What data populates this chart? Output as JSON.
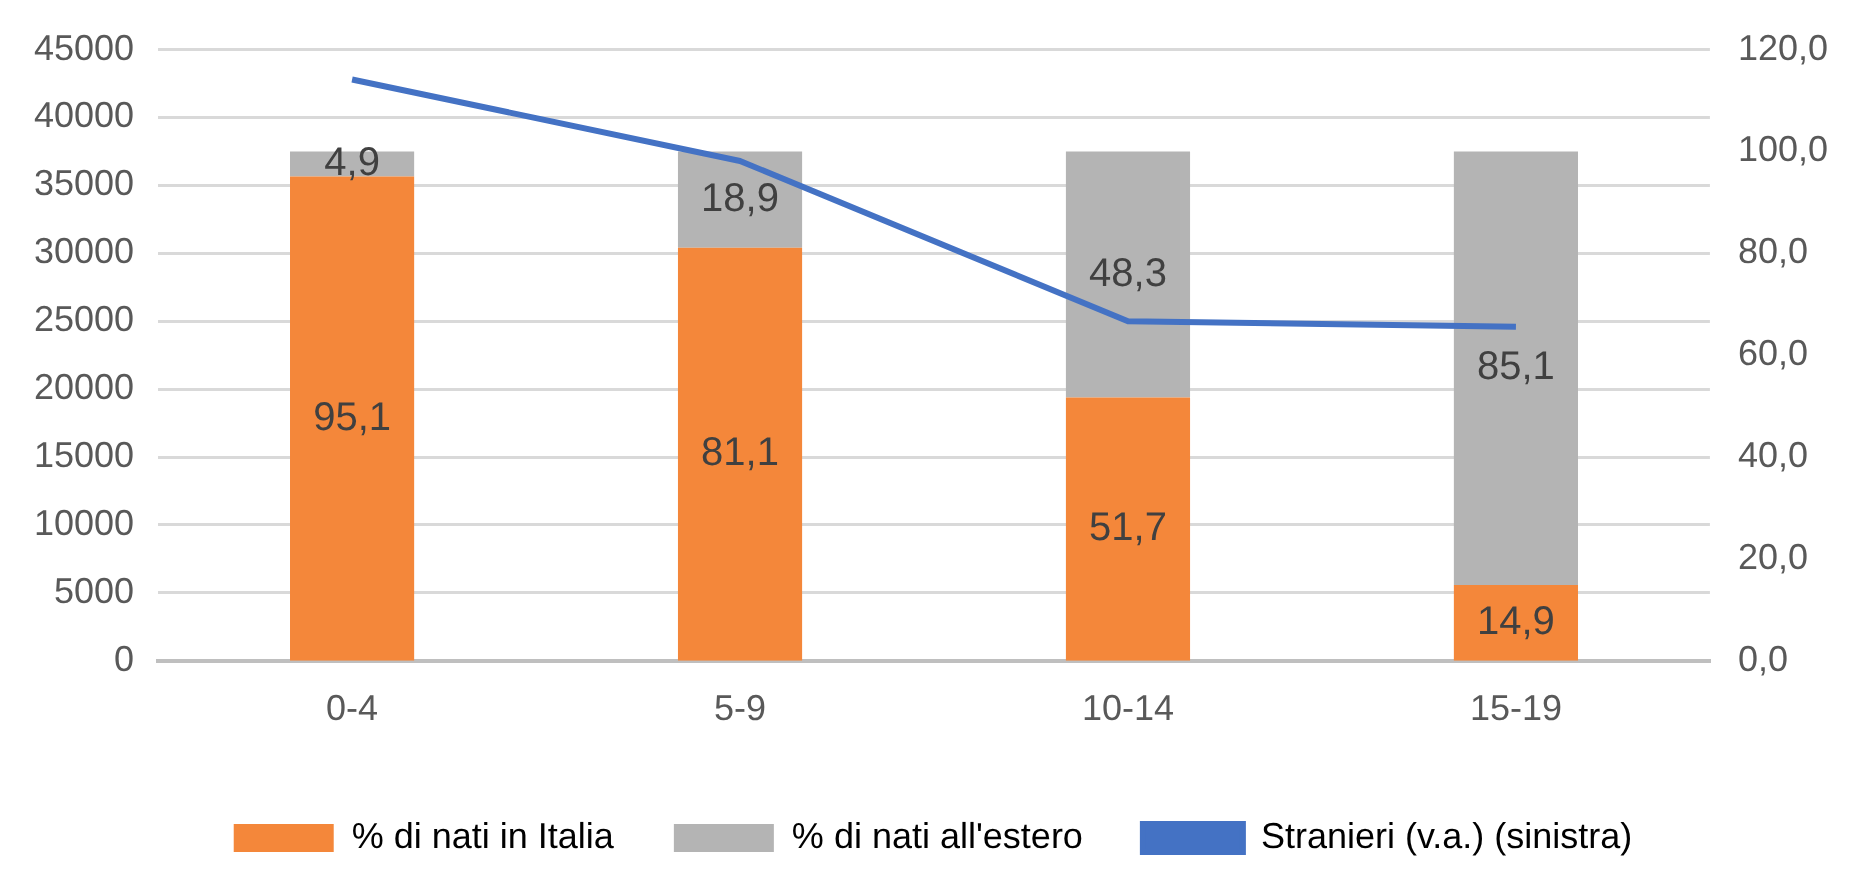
{
  "chart_data": {
    "type": "bar",
    "stacked": true,
    "categories": [
      "0-4",
      "5-9",
      "10-14",
      "15-19"
    ],
    "series": [
      {
        "name": "% di nati in Italia",
        "axis": "y2",
        "color": "#f4873a",
        "values": [
          95.1,
          81.1,
          51.7,
          14.9
        ],
        "value_labels": [
          "95,1",
          "81,1",
          "51,7",
          "14,9"
        ]
      },
      {
        "name": "% di nati all'estero",
        "axis": "y2",
        "color": "#b4b4b4",
        "values": [
          4.9,
          18.9,
          48.3,
          85.1
        ],
        "value_labels": [
          "4,9",
          "18,9",
          "48,3",
          "85,1"
        ]
      },
      {
        "name": "Stranieri (v.a.) (sinistra)",
        "type": "line",
        "color": "#4472c4",
        "values": [
          42800,
          36800,
          25000,
          24600
        ]
      }
    ],
    "ylim": [
      0,
      45000
    ],
    "yticks": [
      0,
      5000,
      10000,
      15000,
      20000,
      25000,
      30000,
      35000,
      40000,
      45000
    ],
    "y2lim": [
      0,
      120
    ],
    "y2ticks": [
      {
        "value": 0,
        "label": "0,0"
      },
      {
        "value": 20,
        "label": "20,0"
      },
      {
        "value": 40,
        "label": "40,0"
      },
      {
        "value": 60,
        "label": "60,0"
      },
      {
        "value": 80,
        "label": "80,0"
      },
      {
        "value": 100,
        "label": "100,0"
      },
      {
        "value": 120,
        "label": "120,0"
      }
    ],
    "grid": "y",
    "legend": "bottom",
    "marker": "none",
    "line_style": "solid"
  }
}
